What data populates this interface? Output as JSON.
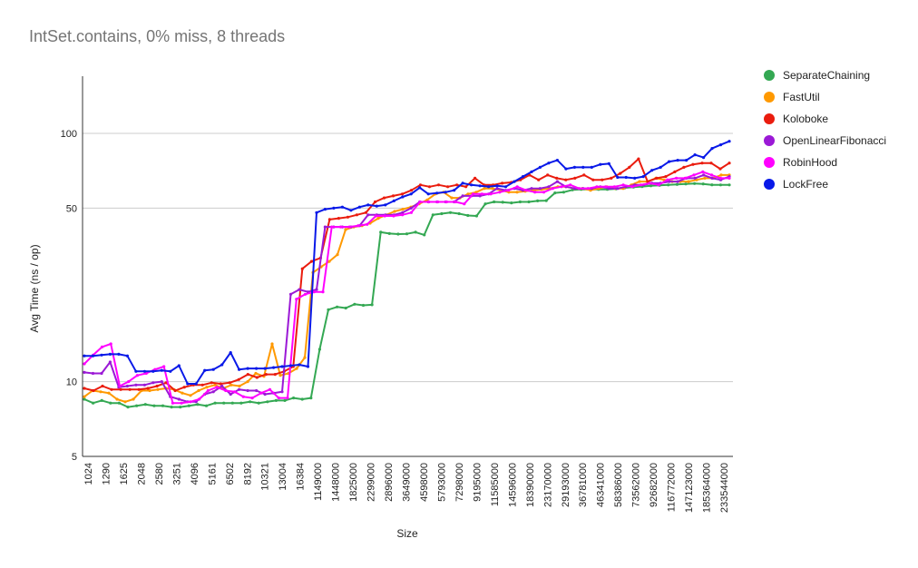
{
  "chart_data": {
    "type": "line",
    "title": "IntSet.contains, 0% miss, 8 threads",
    "xlabel": "Size",
    "ylabel": "Avg Time (ns / op)",
    "y_scale": "log",
    "ylim": [
      5,
      170
    ],
    "y_ticks": [
      5,
      10,
      50,
      100
    ],
    "grid": true,
    "legend_position": "right",
    "x_tick_labels": [
      "1024",
      "1290",
      "1625",
      "2048",
      "2580",
      "3251",
      "4096",
      "5161",
      "6502",
      "8192",
      "10321",
      "13004",
      "16384",
      "1149000",
      "1448000",
      "1825000",
      "2299000",
      "2896000",
      "3649000",
      "4598000",
      "5793000",
      "7298000",
      "9195000",
      "11585000",
      "14596000",
      "18390000",
      "23170000",
      "29193000",
      "36781000",
      "46341000",
      "58386000",
      "73562000",
      "92682000",
      "116772000",
      "147123000",
      "185364000",
      "233544000"
    ],
    "series": [
      {
        "name": "SeparateChaining",
        "color": "#34a853",
        "values": [
          8.5,
          8.2,
          8.4,
          8.2,
          8.2,
          7.9,
          8.0,
          8.1,
          8.0,
          8.0,
          7.9,
          7.9,
          8.0,
          8.1,
          8.0,
          8.2,
          8.2,
          8.2,
          8.2,
          8.3,
          8.2,
          8.3,
          8.4,
          8.4,
          8.6,
          8.5,
          8.6,
          13.5,
          19.5,
          20,
          19.8,
          20.5,
          20.3,
          20.4,
          40,
          39.5,
          39.3,
          39.4,
          40,
          39,
          47,
          47.5,
          48,
          47.5,
          46.7,
          46.5,
          52,
          53,
          52.8,
          52.5,
          53,
          53,
          53.5,
          53.6,
          57.6,
          58,
          59.2,
          59.5,
          59.5,
          59.5,
          59.5,
          59.8,
          60.4,
          60.8,
          61.1,
          61.5,
          61.8,
          62,
          62.3,
          62.6,
          62.8,
          62.6,
          62.1,
          62,
          62
        ]
      },
      {
        "name": "FastUtil",
        "color": "#ff9900",
        "values": [
          8.7,
          9.2,
          9.1,
          9.0,
          8.5,
          8.3,
          8.5,
          9.2,
          9.2,
          9.3,
          9.4,
          9.3,
          9.0,
          8.8,
          9.2,
          9.5,
          9.7,
          9.4,
          9.7,
          9.6,
          10.0,
          10.8,
          10.5,
          14.2,
          10.6,
          10.8,
          11.3,
          12.5,
          27.5,
          29.0,
          30.5,
          32.5,
          41,
          42,
          42.5,
          43.5,
          45.5,
          47,
          48.5,
          49.5,
          50.5,
          52,
          54,
          57,
          58,
          55,
          55,
          57,
          58,
          60,
          60,
          59,
          58,
          58,
          58.5,
          59,
          59.5,
          60,
          61,
          61,
          60,
          60,
          59,
          60,
          61,
          60,
          60,
          62,
          64,
          64,
          66,
          65,
          64,
          64,
          64,
          65,
          66,
          66,
          68,
          68
        ]
      },
      {
        "name": "Koloboke",
        "color": "#ea1c0e",
        "values": [
          9.4,
          9.2,
          9.6,
          9.3,
          9.3,
          9.3,
          9.3,
          9.4,
          9.6,
          9.9,
          9.2,
          9.5,
          9.7,
          9.7,
          9.9,
          9.8,
          9.9,
          10.2,
          10.7,
          10.4,
          10.7,
          10.7,
          11.0,
          11.5,
          28.5,
          30.5,
          31.5,
          45,
          45.5,
          46,
          47,
          48,
          53,
          55,
          56,
          57,
          59,
          62,
          61,
          62,
          61,
          62,
          61,
          66,
          62,
          62,
          63,
          63.5,
          65,
          68,
          65,
          68,
          66,
          65,
          66,
          68,
          65,
          65,
          66,
          69,
          73,
          79,
          64,
          66,
          67,
          70,
          73,
          75,
          76,
          76,
          72,
          76
        ]
      },
      {
        "name": "OpenLinearFibonacci",
        "color": "#9b19d6",
        "values": [
          10.9,
          10.8,
          10.8,
          12,
          9.5,
          9.6,
          9.7,
          9.7,
          9.9,
          10,
          8.7,
          8.5,
          8.3,
          8.3,
          8.9,
          9.1,
          9.6,
          8.9,
          9.3,
          9.2,
          9.2,
          8.9,
          9.0,
          9.1,
          22.5,
          23.5,
          23.0,
          23.5,
          42,
          42,
          42,
          42,
          42.5,
          47,
          47,
          47,
          47,
          48,
          50,
          53,
          53,
          53,
          53,
          53,
          56,
          56,
          56,
          57,
          60,
          59,
          60,
          59,
          60,
          60,
          61,
          64,
          61,
          60,
          60,
          60,
          61,
          60,
          60,
          61,
          62,
          62,
          63,
          63,
          64,
          64,
          66,
          66,
          68,
          66,
          65,
          67
        ]
      },
      {
        "name": "RobinHood",
        "color": "#ff00ff",
        "values": [
          11.8,
          12.8,
          13.8,
          14.2,
          9.6,
          10,
          10.6,
          10.8,
          11.2,
          11.5,
          8.2,
          8.2,
          8.3,
          8.5,
          9.2,
          9.5,
          9.2,
          9.1,
          8.7,
          8.6,
          9.0,
          9.3,
          8.6,
          8.6,
          21.5,
          22.5,
          23,
          23,
          42,
          42,
          42,
          42.5,
          43,
          46.5,
          46.5,
          46.5,
          47,
          48,
          53,
          53,
          53,
          53,
          53,
          52,
          57,
          57,
          57,
          58,
          59,
          61,
          59,
          58,
          58,
          60,
          61,
          62,
          60,
          60,
          61,
          61,
          61,
          62,
          61,
          62,
          63,
          62,
          65,
          66,
          66,
          68,
          70,
          68,
          66,
          66
        ]
      },
      {
        "name": "LockFree",
        "color": "#0919e8",
        "values": [
          12.7,
          12.7,
          12.8,
          12.9,
          12.9,
          12.7,
          11,
          11,
          11,
          11.1,
          11,
          11.6,
          9.8,
          9.8,
          11.1,
          11.2,
          11.7,
          13.1,
          11.2,
          11.3,
          11.3,
          11.3,
          11.4,
          11.5,
          11.6,
          11.7,
          11.5,
          48,
          49.5,
          50,
          50.5,
          49,
          50.5,
          51.5,
          51,
          51.5,
          53.5,
          55.5,
          57,
          60.5,
          57,
          57.5,
          58,
          59,
          63,
          62,
          61.5,
          61,
          61.5,
          61,
          64,
          67,
          70,
          73,
          76,
          78,
          72,
          73,
          73,
          73,
          75,
          75.5,
          66.5,
          66.5,
          66,
          67,
          71,
          73,
          77,
          78,
          78,
          82,
          80,
          87,
          90,
          93
        ]
      }
    ]
  }
}
